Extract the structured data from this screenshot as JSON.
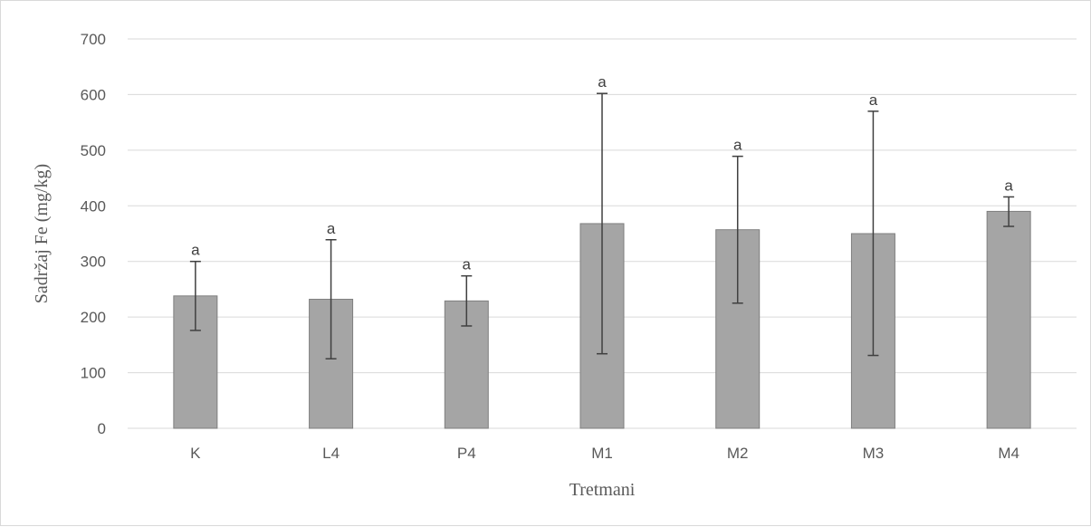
{
  "chart_data": {
    "type": "bar",
    "title": "",
    "xlabel": "Tretmani",
    "ylabel": "Sadržaj Fe (mg/kg)",
    "ylim": [
      0,
      700
    ],
    "yticks": [
      0,
      100,
      200,
      300,
      400,
      500,
      600,
      700
    ],
    "grid": true,
    "categories": [
      "K",
      "L4",
      "P4",
      "M1",
      "M2",
      "M3",
      "M4"
    ],
    "values": [
      238,
      232,
      229,
      368,
      357,
      350,
      390
    ],
    "error_low": [
      176,
      125,
      184,
      134,
      225,
      131,
      363
    ],
    "error_high": [
      300,
      339,
      274,
      602,
      489,
      570,
      416
    ],
    "significance_labels": [
      "a",
      "a",
      "a",
      "a",
      "a",
      "a",
      "a"
    ],
    "colors": {
      "bar_fill": "#a5a5a5",
      "bar_stroke": "#7f7f7f",
      "error_bar": "#404040",
      "grid": "#d9d9d9"
    }
  }
}
